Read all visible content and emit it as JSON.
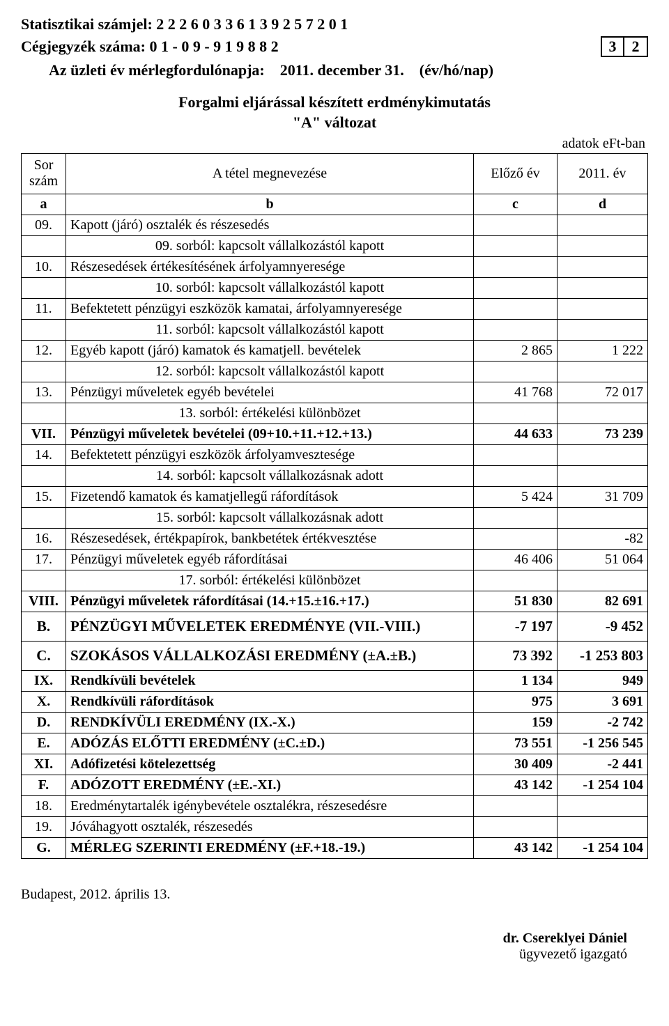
{
  "header": {
    "stat_label": "Statisztikai számjel:",
    "stat_value": "2 2 2 6 0 3 3 6 1 3 9 2 5 7 2 0 1",
    "reg_label": "Cégjegyzék száma:",
    "reg_value": "0 1 - 0 9 - 9 1 9 8 8 2",
    "page_box_1": "3",
    "page_box_2": "2",
    "fy_label": "Az üzleti év mérlegfordulónapja:",
    "fy_value": "2011. december 31.",
    "fy_unit": "(év/hó/nap)"
  },
  "title": {
    "line1": "Forgalmi  eljárással készített erdménykimutatás",
    "line2": "\"A\" változat"
  },
  "units_note": "adatok eFt-ban",
  "columns": {
    "a_label": "Sor szám",
    "b_label": "A tétel megnevezése",
    "c_label": "Előző év",
    "d_label": "2011. év",
    "a_key": "a",
    "b_key": "b",
    "c_key": "c",
    "d_key": "d"
  },
  "rows": [
    {
      "a": "09.",
      "b": "Kapott (járó) osztalék és részesedés",
      "c": "",
      "d": "",
      "sub": false,
      "bold": false
    },
    {
      "a": "",
      "b": "09. sorból: kapcsolt vállalkozástól kapott",
      "c": "",
      "d": "",
      "sub": true,
      "bold": false
    },
    {
      "a": "10.",
      "b": "Részesedések értékesítésének árfolyamnyeresége",
      "c": "",
      "d": "",
      "sub": false,
      "bold": false
    },
    {
      "a": "",
      "b": "10. sorból: kapcsolt vállalkozástól kapott",
      "c": "",
      "d": "",
      "sub": true,
      "bold": false
    },
    {
      "a": "11.",
      "b": "Befektetett pénzügyi eszközök kamatai, árfolyamnyeresége",
      "c": "",
      "d": "",
      "sub": false,
      "bold": false
    },
    {
      "a": "",
      "b": "11. sorból: kapcsolt vállalkozástól kapott",
      "c": "",
      "d": "",
      "sub": true,
      "bold": false
    },
    {
      "a": "12.",
      "b": "Egyéb kapott (járó) kamatok és kamatjell. bevételek",
      "c": "2 865",
      "d": "1 222",
      "sub": false,
      "bold": false
    },
    {
      "a": "",
      "b": "12. sorból: kapcsolt vállalkozástól kapott",
      "c": "",
      "d": "",
      "sub": true,
      "bold": false
    },
    {
      "a": "13.",
      "b": "Pénzügyi műveletek egyéb bevételei",
      "c": "41 768",
      "d": "72 017",
      "sub": false,
      "bold": false
    },
    {
      "a": "",
      "b": "13. sorból: értékelési különbözet",
      "c": "",
      "d": "",
      "sub": true,
      "bold": false
    },
    {
      "a": "VII.",
      "b": "Pénzügyi műveletek bevételei (09+10.+11.+12.+13.)",
      "c": "44 633",
      "d": "73 239",
      "sub": false,
      "bold": true
    },
    {
      "a": "14.",
      "b": "Befektetett pénzügyi eszközök árfolyamvesztesége",
      "c": "",
      "d": "",
      "sub": false,
      "bold": false
    },
    {
      "a": "",
      "b": "14. sorból: kapcsolt vállalkozásnak adott",
      "c": "",
      "d": "",
      "sub": true,
      "bold": false
    },
    {
      "a": "15.",
      "b": "Fizetendő kamatok és kamatjellegű ráfordítások",
      "c": "5 424",
      "d": "31 709",
      "sub": false,
      "bold": false
    },
    {
      "a": "",
      "b": "15. sorból: kapcsolt vállalkozásnak adott",
      "c": "",
      "d": "",
      "sub": true,
      "bold": false
    },
    {
      "a": "16.",
      "b": "Részesedések, értékpapírok, bankbetétek értékvesztése",
      "c": "",
      "d": "-82",
      "sub": false,
      "bold": false
    },
    {
      "a": "17.",
      "b": "Pénzügyi műveletek egyéb ráfordításai",
      "c": "46 406",
      "d": "51 064",
      "sub": false,
      "bold": false
    },
    {
      "a": "",
      "b": "17. sorból: értékelési különbözet",
      "c": "",
      "d": "",
      "sub": true,
      "bold": false
    },
    {
      "a": "VIII.",
      "b": "Pénzügyi műveletek ráfordításai (14.+15.±16.+17.)",
      "c": "51 830",
      "d": "82 691",
      "sub": false,
      "bold": true
    },
    {
      "a": "B.",
      "b": "PÉNZÜGYI MŰVELETEK EREDMÉNYE (VII.-VIII.)",
      "c": "-7 197",
      "d": "-9 452",
      "sub": false,
      "bold": true,
      "tall": true
    },
    {
      "a": "C.",
      "b": "SZOKÁSOS VÁLLALKOZÁSI EREDMÉNY (±A.±B.)",
      "c": "73 392",
      "d": "-1 253 803",
      "sub": false,
      "bold": true,
      "tall": true
    },
    {
      "a": "IX.",
      "b": "Rendkívüli bevételek",
      "c": "1 134",
      "d": "949",
      "sub": false,
      "bold": true
    },
    {
      "a": "X.",
      "b": "Rendkívüli ráfordítások",
      "c": "975",
      "d": "3 691",
      "sub": false,
      "bold": true
    },
    {
      "a": "D.",
      "b": "RENDKÍVÜLI EREDMÉNY (IX.-X.)",
      "c": "159",
      "d": "-2 742",
      "sub": false,
      "bold": true
    },
    {
      "a": "E.",
      "b": "ADÓZÁS ELŐTTI EREDMÉNY (±C.±D.)",
      "c": "73 551",
      "d": "-1 256 545",
      "sub": false,
      "bold": true
    },
    {
      "a": "XI.",
      "b": "Adófizetési kötelezettség",
      "c": "30 409",
      "d": "-2 441",
      "sub": false,
      "bold": true
    },
    {
      "a": "F.",
      "b": "ADÓZOTT EREDMÉNY (±E.-XI.)",
      "c": "43 142",
      "d": "-1 254 104",
      "sub": false,
      "bold": true
    },
    {
      "a": "18.",
      "b": "Eredménytartalék igénybevétele osztalékra, részesedésre",
      "c": "",
      "d": "",
      "sub": false,
      "bold": false
    },
    {
      "a": "19.",
      "b": "Jóváhagyott osztalék, részesedés",
      "c": "",
      "d": "",
      "sub": false,
      "bold": false
    },
    {
      "a": "G.",
      "b": "MÉRLEG SZERINTI EREDMÉNY (±F.+18.-19.)",
      "c": "43 142",
      "d": "-1 254 104",
      "sub": false,
      "bold": true
    }
  ],
  "footer": {
    "place_date": "Budapest, 2012. április 13.",
    "sign_name": "dr. Csereklyei Dániel",
    "sign_title": "ügyvezető igazgató"
  }
}
